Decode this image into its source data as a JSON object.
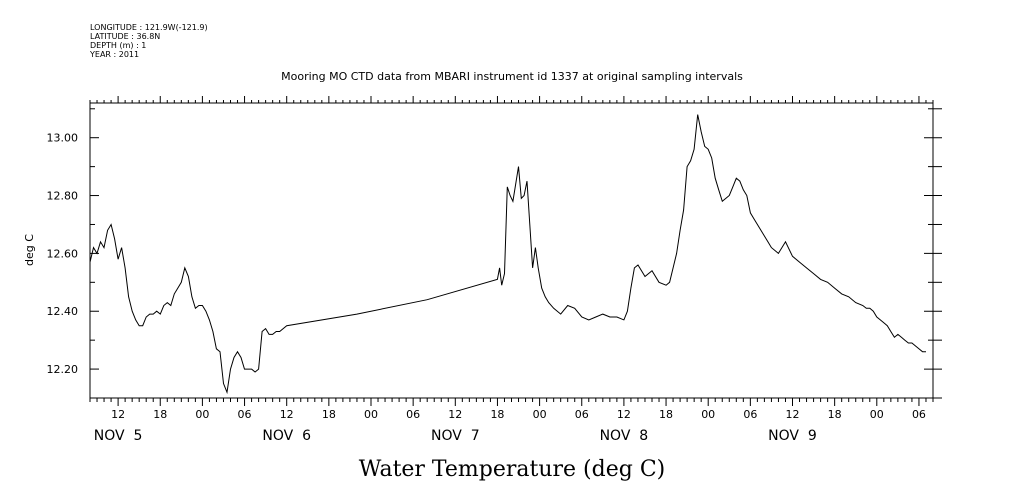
{
  "meta_lines": [
    "LONGITUDE : 121.9W(-121.9)",
    "LATITUDE : 36.8N",
    "DEPTH (m) : 1",
    "YEAR : 2011"
  ],
  "chart_data": {
    "type": "line",
    "title": "Mooring MO CTD data from MBARI instrument id 1337 at original sampling intervals",
    "xlabel": "Water Temperature (deg C)",
    "ylabel": "deg C",
    "xlim": [
      8,
      128
    ],
    "ylim": [
      12.1,
      13.12
    ],
    "yticks": [
      12.2,
      12.4,
      12.6,
      12.8,
      13.0
    ],
    "ytick_labels": [
      "12.20",
      "12.40",
      "12.60",
      "12.80",
      "13.00"
    ],
    "hour_ticks": [
      12,
      18,
      24,
      30,
      36,
      42,
      48,
      54,
      60,
      66,
      72,
      78,
      84,
      90,
      96,
      102,
      108,
      114,
      120
    ],
    "hour_tick_labels": [
      "12",
      "18",
      "00",
      "06",
      "12",
      "18",
      "00",
      "06",
      "12",
      "18",
      "00",
      "06",
      "12",
      "18",
      "00",
      "06",
      "12",
      "18",
      "00",
      "06",
      "12"
    ],
    "hour_tick_label_positions": [
      12,
      18,
      24,
      30,
      36,
      42,
      48,
      54,
      60,
      66,
      72,
      78,
      84,
      90,
      96,
      102,
      108,
      114,
      120,
      126,
      132
    ],
    "day_labels": [
      {
        "text": "NOV  5",
        "x": 12
      },
      {
        "text": "NOV  6",
        "x": 36
      },
      {
        "text": "NOV  7",
        "x": 60
      },
      {
        "text": "NOV  8",
        "x": 84
      },
      {
        "text": "NOV  9",
        "x": 108
      }
    ],
    "series": [
      {
        "x": [
          8.0,
          8.5,
          9.0,
          9.5,
          10.0,
          10.5,
          11.0,
          11.5,
          12.0,
          12.5,
          13.0,
          13.5,
          14.0,
          14.5,
          15.0,
          15.5,
          16.0,
          16.5,
          17.0,
          17.5,
          18.0,
          18.5,
          19.0,
          19.5,
          20.0,
          20.5,
          21.0,
          21.5,
          22.0,
          22.5,
          23.0,
          23.5,
          24.0,
          24.5,
          25.0,
          25.5,
          26.0,
          26.5,
          27.0,
          27.5,
          28.0,
          28.5,
          29.0,
          29.5,
          30.0,
          30.5,
          31.0,
          31.5,
          32.0,
          32.5,
          33.0,
          33.5,
          34.0,
          34.5,
          35.0,
          36.0,
          46.0,
          56.0,
          66.0,
          66.3,
          66.6,
          67.0,
          67.4,
          67.8,
          68.2,
          68.6,
          69.0,
          69.4,
          69.8,
          70.2,
          70.6,
          71.0,
          71.4,
          71.8,
          72.3,
          72.8,
          73.3,
          74.0,
          75.0,
          76.0,
          77.0,
          78.0,
          79.0,
          80.0,
          81.0,
          82.0,
          83.0,
          84.0,
          84.5,
          85.0,
          85.5,
          86.0,
          87.0,
          88.0,
          89.0,
          90.0,
          90.5,
          91.0,
          91.5,
          92.0,
          92.5,
          93.0,
          93.5,
          94.0,
          94.5,
          95.0,
          95.5,
          96.0,
          96.5,
          97.0,
          97.5,
          98.0,
          98.5,
          99.0,
          99.5,
          100.0,
          100.5,
          101.0,
          101.5,
          102.0,
          102.5,
          103.0,
          103.5,
          104.0,
          104.5,
          105.0,
          106.0,
          107.0,
          108.0,
          109.0,
          110.0,
          111.0,
          112.0,
          113.0,
          114.0,
          115.0,
          116.0,
          117.0,
          118.0,
          118.5,
          119.0,
          119.5,
          120.0,
          120.5,
          121.0,
          121.5,
          122.0,
          122.5,
          123.0,
          123.5,
          124.0,
          124.5,
          125.0,
          125.5,
          126.0,
          126.5,
          127.0
        ],
        "values": [
          12.57,
          12.62,
          12.6,
          12.64,
          12.62,
          12.68,
          12.7,
          12.65,
          12.58,
          12.62,
          12.55,
          12.45,
          12.4,
          12.37,
          12.35,
          12.35,
          12.38,
          12.39,
          12.39,
          12.4,
          12.39,
          12.42,
          12.43,
          12.42,
          12.46,
          12.48,
          12.5,
          12.55,
          12.52,
          12.45,
          12.41,
          12.42,
          12.42,
          12.4,
          12.37,
          12.33,
          12.27,
          12.26,
          12.15,
          12.12,
          12.2,
          12.24,
          12.26,
          12.24,
          12.2,
          12.2,
          12.2,
          12.19,
          12.2,
          12.33,
          12.34,
          12.32,
          12.32,
          12.33,
          12.33,
          12.35,
          12.39,
          12.44,
          12.51,
          12.55,
          12.49,
          12.53,
          12.83,
          12.8,
          12.78,
          12.84,
          12.9,
          12.79,
          12.8,
          12.85,
          12.7,
          12.55,
          12.62,
          12.55,
          12.48,
          12.45,
          12.43,
          12.41,
          12.39,
          12.42,
          12.41,
          12.38,
          12.37,
          12.38,
          12.39,
          12.38,
          12.38,
          12.37,
          12.4,
          12.48,
          12.55,
          12.56,
          12.52,
          12.54,
          12.5,
          12.49,
          12.5,
          12.55,
          12.6,
          12.68,
          12.75,
          12.9,
          12.92,
          12.96,
          13.08,
          13.02,
          12.97,
          12.96,
          12.93,
          12.86,
          12.82,
          12.78,
          12.79,
          12.8,
          12.83,
          12.86,
          12.85,
          12.82,
          12.8,
          12.74,
          12.72,
          12.7,
          12.68,
          12.66,
          12.64,
          12.62,
          12.6,
          12.64,
          12.59,
          12.57,
          12.55,
          12.53,
          12.51,
          12.5,
          12.48,
          12.46,
          12.45,
          12.43,
          12.42,
          12.41,
          12.41,
          12.4,
          12.38,
          12.37,
          12.36,
          12.35,
          12.33,
          12.31,
          12.32,
          12.31,
          12.3,
          12.29,
          12.29,
          12.28,
          12.27,
          12.26,
          12.26
        ]
      }
    ]
  }
}
